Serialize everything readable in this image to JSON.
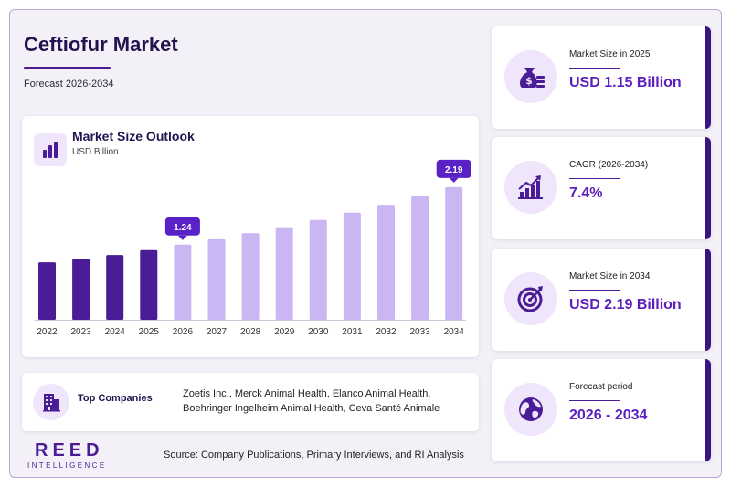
{
  "header": {
    "title": "Ceftiofur Market",
    "subtitle": "Forecast 2026-2034"
  },
  "chart": {
    "icon": "bar-chart-icon",
    "title": "Market Size Outlook",
    "unit": "USD Billion"
  },
  "chart_data": {
    "type": "bar",
    "title": "Market Size Outlook",
    "ylabel": "USD Billion",
    "categories": [
      "2022",
      "2023",
      "2024",
      "2025",
      "2026",
      "2027",
      "2028",
      "2029",
      "2030",
      "2031",
      "2032",
      "2033",
      "2034"
    ],
    "values": [
      0.95,
      1.0,
      1.07,
      1.15,
      1.24,
      1.33,
      1.43,
      1.53,
      1.65,
      1.77,
      1.9,
      2.04,
      2.19
    ],
    "historical_color": "#4a1d96",
    "forecast_color": "#c9b6f2",
    "forecast_start": "2026",
    "data_labels": [
      {
        "category": "2026",
        "text": "1.24"
      },
      {
        "category": "2034",
        "text": "2.19"
      }
    ],
    "label_color": "#5a22c6",
    "ylim": [
      0,
      2.4
    ],
    "grid": false,
    "legend": "none"
  },
  "companies": {
    "icon": "building-icon",
    "label": "Top Companies",
    "line1": "Zoetis Inc., Merck Animal Health, Elanco Animal Health,",
    "line2": "Boehringer Ingelheim Animal Health, Ceva Santé Animale"
  },
  "stats": [
    {
      "icon": "money-bag-icon",
      "label": "Market Size in 2025",
      "value": "USD 1.15 Billion"
    },
    {
      "icon": "growth-chart-icon",
      "label": "CAGR (2026-2034)",
      "value": "7.4%"
    },
    {
      "icon": "target-icon",
      "label": "Market Size in 2034",
      "value": "USD 2.19 Billion"
    },
    {
      "icon": "globe-icon",
      "label": "Forecast period",
      "value": "2026 - 2034"
    }
  ],
  "brand": {
    "name": "REED",
    "tagline": "INTELLIGENCE"
  },
  "source": "Source: Company Publications, Primary Interviews, and RI Analysis",
  "colors": {
    "brand_dark": "#23134f",
    "accent": "#4a1d96",
    "value_text": "#5b1fbf",
    "icon_bg": "#efe6fb"
  }
}
